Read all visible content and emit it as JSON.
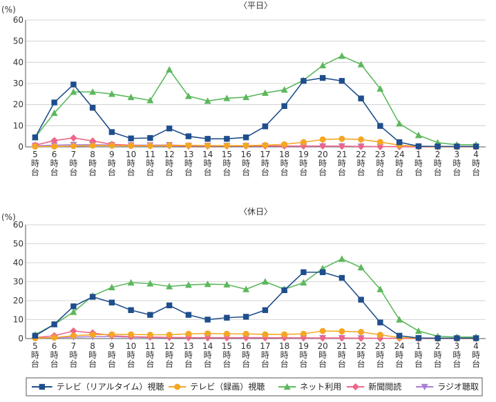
{
  "chart_data": [
    {
      "type": "line",
      "title": "〈平日〉",
      "ylabel": "(%)",
      "ylim": [
        0,
        60
      ],
      "yticks": [
        "0",
        "10",
        "20",
        "30",
        "40",
        "50",
        "60"
      ],
      "categories": [
        [
          "5",
          "時",
          "台"
        ],
        [
          "6",
          "時",
          "台"
        ],
        [
          "7",
          "時",
          "台"
        ],
        [
          "8",
          "時",
          "台"
        ],
        [
          "9",
          "時",
          "台"
        ],
        [
          "10",
          "時",
          "台"
        ],
        [
          "11",
          "時",
          "台"
        ],
        [
          "12",
          "時",
          "台"
        ],
        [
          "13",
          "時",
          "台"
        ],
        [
          "14",
          "時",
          "台"
        ],
        [
          "15",
          "時",
          "台"
        ],
        [
          "16",
          "時",
          "台"
        ],
        [
          "17",
          "時",
          "台"
        ],
        [
          "18",
          "時",
          "台"
        ],
        [
          "19",
          "時",
          "台"
        ],
        [
          "20",
          "時",
          "台"
        ],
        [
          "21",
          "時",
          "台"
        ],
        [
          "22",
          "時",
          "台"
        ],
        [
          "23",
          "時",
          "台"
        ],
        [
          "24",
          "時",
          "台"
        ],
        [
          "1",
          "時",
          "台"
        ],
        [
          "2",
          "時",
          "台"
        ],
        [
          "3",
          "時",
          "台"
        ],
        [
          "4",
          "時",
          "台"
        ]
      ],
      "series": [
        {
          "name": "テレビ（リアルタイム）視聴",
          "color": "#1f4e8c",
          "marker": "square",
          "values": [
            4.5,
            21,
            29.5,
            18.5,
            7,
            4,
            4.2,
            8.7,
            5,
            3.8,
            3.8,
            4.5,
            9.7,
            19.3,
            31.2,
            32.6,
            31.2,
            22.9,
            9.9,
            2.2,
            0.3,
            0.2,
            0.2,
            0.2
          ]
        },
        {
          "name": "テレビ（録画）視聴",
          "color": "#f5a623",
          "marker": "circle",
          "values": [
            0.2,
            0.2,
            0.4,
            0.6,
            0.6,
            0.5,
            0.5,
            0.7,
            0.7,
            0.6,
            0.6,
            0.6,
            0.8,
            1.2,
            2.2,
            3.5,
            3.8,
            3.5,
            2.3,
            0.8,
            0.2,
            0.1,
            0.1,
            0.1
          ]
        },
        {
          "name": "ネット利用",
          "color": "#5cb85c",
          "marker": "triangle",
          "values": [
            4.5,
            16,
            26,
            26,
            25,
            23.5,
            22,
            36.5,
            24,
            21.7,
            23,
            23.5,
            25.5,
            27,
            31.5,
            38.5,
            43,
            39,
            27.5,
            11,
            5.5,
            2,
            1,
            1
          ]
        },
        {
          "name": "新聞閲読",
          "color": "#ee6688",
          "marker": "diamond",
          "values": [
            0.8,
            3,
            4.2,
            2.8,
            1.2,
            0.8,
            0.5,
            0.5,
            0.4,
            0.4,
            0.4,
            0.4,
            0.4,
            0.4,
            0.4,
            0.4,
            0.3,
            0.2,
            0.1,
            0.1,
            0,
            0,
            0,
            0
          ]
        },
        {
          "name": "ラジオ聴取",
          "color": "#a87fd6",
          "marker": "triangle-down",
          "values": [
            0.5,
            0.8,
            1,
            1,
            0.9,
            0.8,
            0.8,
            0.9,
            0.6,
            0.6,
            0.5,
            0.5,
            0.5,
            0.4,
            0.3,
            0.3,
            0.3,
            0.2,
            0.1,
            0.1,
            0,
            0,
            0,
            0
          ]
        }
      ]
    },
    {
      "type": "line",
      "title": "〈休日〉",
      "ylabel": "(%)",
      "ylim": [
        0,
        60
      ],
      "yticks": [
        "0",
        "10",
        "20",
        "30",
        "40",
        "50",
        "60"
      ],
      "categories": [
        [
          "5",
          "時",
          "台"
        ],
        [
          "6",
          "時",
          "台"
        ],
        [
          "7",
          "時",
          "台"
        ],
        [
          "8",
          "時",
          "台"
        ],
        [
          "9",
          "時",
          "台"
        ],
        [
          "10",
          "時",
          "台"
        ],
        [
          "11",
          "時",
          "台"
        ],
        [
          "12",
          "時",
          "台"
        ],
        [
          "13",
          "時",
          "台"
        ],
        [
          "14",
          "時",
          "台"
        ],
        [
          "15",
          "時",
          "台"
        ],
        [
          "16",
          "時",
          "台"
        ],
        [
          "17",
          "時",
          "台"
        ],
        [
          "18",
          "時",
          "台"
        ],
        [
          "19",
          "時",
          "台"
        ],
        [
          "20",
          "時",
          "台"
        ],
        [
          "21",
          "時",
          "台"
        ],
        [
          "22",
          "時",
          "台"
        ],
        [
          "23",
          "時",
          "台"
        ],
        [
          "24",
          "時",
          "台"
        ],
        [
          "1",
          "時",
          "台"
        ],
        [
          "2",
          "時",
          "台"
        ],
        [
          "3",
          "時",
          "台"
        ],
        [
          "4",
          "時",
          "台"
        ]
      ],
      "series": [
        {
          "name": "テレビ（リアルタイム）視聴",
          "color": "#1f4e8c",
          "marker": "square",
          "values": [
            1.5,
            7.5,
            17,
            22,
            19,
            15,
            12.5,
            17.5,
            12.5,
            10,
            11,
            11.5,
            15,
            25.5,
            35,
            35,
            32,
            20.5,
            8.5,
            1.5,
            0.3,
            0.2,
            0.2,
            0.2
          ]
        },
        {
          "name": "テレビ（録画）視聴",
          "color": "#f5a623",
          "marker": "circle",
          "values": [
            0.2,
            0.5,
            1.5,
            2,
            2.2,
            2.2,
            2,
            2,
            2.5,
            2.7,
            2.5,
            2.5,
            2.2,
            2.2,
            2.5,
            4,
            3.8,
            3.5,
            2,
            0.5,
            0.2,
            0.1,
            0.1,
            0.1
          ]
        },
        {
          "name": "ネット利用",
          "color": "#5cb85c",
          "marker": "triangle",
          "values": [
            2,
            7.5,
            14,
            22.5,
            27,
            29.5,
            29,
            27.5,
            28.3,
            28.7,
            28.5,
            26,
            30,
            26,
            29.5,
            37,
            42,
            37.5,
            26,
            10,
            4,
            1.2,
            0.8,
            0.8
          ]
        },
        {
          "name": "新聞閲読",
          "color": "#ee6688",
          "marker": "diamond",
          "values": [
            0.5,
            1.5,
            4,
            3,
            1.5,
            1,
            0.8,
            0.6,
            0.5,
            0.4,
            0.4,
            0.4,
            0.4,
            0.4,
            0.4,
            0.3,
            0.3,
            0.2,
            0.1,
            0.1,
            0,
            0,
            0,
            0
          ]
        },
        {
          "name": "ラジオ聴取",
          "color": "#a87fd6",
          "marker": "triangle-down",
          "values": [
            0.3,
            0.5,
            0.8,
            1,
            1,
            0.8,
            0.6,
            0.5,
            0.5,
            0.5,
            0.5,
            0.5,
            0.5,
            0.4,
            0.3,
            0.3,
            0.3,
            0.2,
            0.1,
            0.1,
            0,
            0,
            0,
            0
          ]
        }
      ]
    }
  ],
  "legend": [
    {
      "label": "テレビ（リアルタイム）視聴",
      "color": "#1f4e8c",
      "marker": "square"
    },
    {
      "label": "テレビ（録画）視聴",
      "color": "#f5a623",
      "marker": "circle"
    },
    {
      "label": "ネット利用",
      "color": "#5cb85c",
      "marker": "triangle"
    },
    {
      "label": "新聞閲読",
      "color": "#ee6688",
      "marker": "diamond"
    },
    {
      "label": "ラジオ聴取",
      "color": "#a87fd6",
      "marker": "triangle-down"
    }
  ]
}
